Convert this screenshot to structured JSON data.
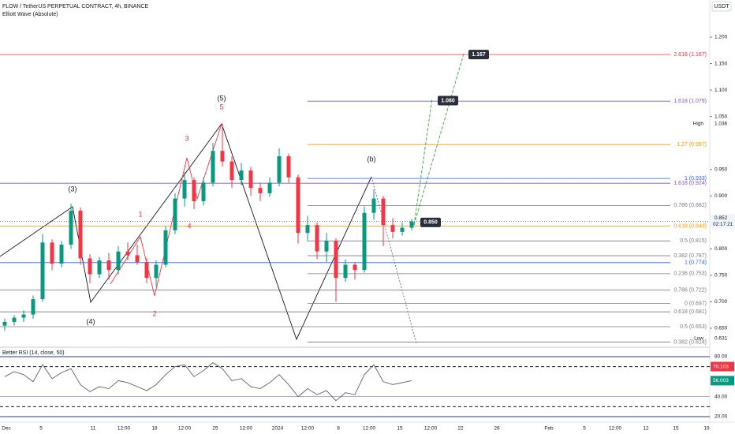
{
  "header": {
    "title": "FLOW / TetherUS PERPETUAL CONTRACT, 4h, BINANCE",
    "indicator": "Elliott Wave (Absolute)",
    "currency": "USDT"
  },
  "price_axis": {
    "ticks": [
      {
        "value": 1.2,
        "label": "1.200"
      },
      {
        "value": 1.15,
        "label": "1.150"
      },
      {
        "value": 1.1,
        "label": "1.100"
      },
      {
        "value": 1.05,
        "label": "1.050"
      },
      {
        "value": 0.95,
        "label": "0.950"
      },
      {
        "value": 0.9,
        "label": "0.900"
      },
      {
        "value": 0.8,
        "label": "0.800"
      },
      {
        "value": 0.75,
        "label": "0.750"
      },
      {
        "value": 0.7,
        "label": "0.700"
      },
      {
        "value": 0.65,
        "label": "0.650"
      }
    ],
    "high": {
      "name": "High",
      "value": 1.036
    },
    "low": {
      "name": "Low",
      "value": 0.631
    },
    "last": {
      "value": 0.852,
      "countdown": "02:17:21"
    }
  },
  "fib_levels": [
    {
      "label": "2.618 (1.167)",
      "price": 1.167,
      "color": "#f23645"
    },
    {
      "label": "1.618 (1.079)",
      "price": 1.079,
      "color": "#7e57c2"
    },
    {
      "label": "1.27 (0.997)",
      "price": 0.997,
      "color": "#ff9800"
    },
    {
      "label": "1 (0.933)",
      "price": 0.933,
      "color": "#2962ff"
    },
    {
      "label": "1.618 (0.924)",
      "price": 0.924,
      "color": "#7e57c2"
    },
    {
      "label": "0.786 (0.882)",
      "price": 0.882,
      "color": "#787b86"
    },
    {
      "label": "0.618 (0.843)",
      "price": 0.843,
      "color": "#ff9800"
    },
    {
      "label": "0.5 (0.815)",
      "price": 0.815,
      "color": "#787b86"
    },
    {
      "label": "0.382 (0.787)",
      "price": 0.787,
      "color": "#787b86"
    },
    {
      "label": "1 (0.774)",
      "price": 0.774,
      "color": "#2962ff"
    },
    {
      "label": "0.236 (0.753)",
      "price": 0.753,
      "color": "#787b86"
    },
    {
      "label": "0.786 (0.722)",
      "price": 0.722,
      "color": "#787b86"
    },
    {
      "label": "0 (0.697)",
      "price": 0.697,
      "color": "#787b86"
    },
    {
      "label": "0.618 (0.681)",
      "price": 0.681,
      "color": "#787b86"
    },
    {
      "label": "0.5 (0.653)",
      "price": 0.653,
      "color": "#787b86"
    },
    {
      "label": "0.382 (0.624)",
      "price": 0.624,
      "color": "#787b86"
    }
  ],
  "wave_labels": [
    {
      "text": "(3)",
      "color": "#131722"
    },
    {
      "text": "(4)",
      "color": "#131722"
    },
    {
      "text": "(5)",
      "color": "#131722"
    },
    {
      "text": "5",
      "color": "#f23645"
    },
    {
      "text": "3",
      "color": "#f23645"
    },
    {
      "text": "1",
      "color": "#f23645"
    },
    {
      "text": "4",
      "color": "#f23645"
    },
    {
      "text": "2",
      "color": "#f23645"
    },
    {
      "text": "(b)",
      "color": "#131722"
    }
  ],
  "targets": [
    {
      "value": 1.167,
      "label": "1.167"
    },
    {
      "value": 1.08,
      "label": "1.080"
    },
    {
      "value": 0.85,
      "label": "0.850"
    }
  ],
  "candles": [
    [
      0.655,
      0.668,
      0.645,
      0.662
    ],
    [
      0.662,
      0.675,
      0.655,
      0.67
    ],
    [
      0.67,
      0.684,
      0.662,
      0.676
    ],
    [
      0.676,
      0.712,
      0.668,
      0.705
    ],
    [
      0.705,
      0.828,
      0.7,
      0.812
    ],
    [
      0.812,
      0.818,
      0.76,
      0.772
    ],
    [
      0.772,
      0.815,
      0.765,
      0.808
    ],
    [
      0.808,
      0.885,
      0.8,
      0.872
    ],
    [
      0.872,
      0.878,
      0.77,
      0.782
    ],
    [
      0.782,
      0.79,
      0.735,
      0.752
    ],
    [
      0.752,
      0.785,
      0.745,
      0.778
    ],
    [
      0.778,
      0.792,
      0.742,
      0.76
    ],
    [
      0.76,
      0.805,
      0.752,
      0.795
    ],
    [
      0.795,
      0.812,
      0.778,
      0.788
    ],
    [
      0.788,
      0.808,
      0.77,
      0.775
    ],
    [
      0.775,
      0.782,
      0.735,
      0.745
    ],
    [
      0.745,
      0.778,
      0.73,
      0.77
    ],
    [
      0.77,
      0.842,
      0.765,
      0.835
    ],
    [
      0.835,
      0.905,
      0.828,
      0.895
    ],
    [
      0.895,
      0.945,
      0.88,
      0.93
    ],
    [
      0.93,
      0.935,
      0.875,
      0.89
    ],
    [
      0.89,
      0.935,
      0.882,
      0.925
    ],
    [
      0.925,
      1.0,
      0.918,
      0.985
    ],
    [
      0.985,
      1.036,
      0.955,
      0.965
    ],
    [
      0.965,
      0.975,
      0.915,
      0.93
    ],
    [
      0.93,
      0.962,
      0.92,
      0.948
    ],
    [
      0.948,
      0.955,
      0.9,
      0.915
    ],
    [
      0.915,
      0.925,
      0.89,
      0.905
    ],
    [
      0.905,
      0.935,
      0.898,
      0.925
    ],
    [
      0.925,
      0.99,
      0.918,
      0.975
    ],
    [
      0.975,
      0.98,
      0.925,
      0.935
    ],
    [
      0.935,
      0.94,
      0.81,
      0.83
    ],
    [
      0.83,
      0.862,
      0.815,
      0.845
    ],
    [
      0.845,
      0.85,
      0.78,
      0.795
    ],
    [
      0.795,
      0.83,
      0.775,
      0.815
    ],
    [
      0.815,
      0.82,
      0.7,
      0.745
    ],
    [
      0.745,
      0.78,
      0.738,
      0.77
    ],
    [
      0.77,
      0.775,
      0.742,
      0.76
    ],
    [
      0.76,
      0.88,
      0.755,
      0.868
    ],
    [
      0.868,
      0.912,
      0.855,
      0.895
    ],
    [
      0.895,
      0.9,
      0.805,
      0.845
    ],
    [
      0.845,
      0.858,
      0.82,
      0.832
    ],
    [
      0.832,
      0.85,
      0.825,
      0.84
    ],
    [
      0.84,
      0.856,
      0.835,
      0.852
    ]
  ],
  "rsi": {
    "title": "Better RSI (14, close, 50)",
    "values": [
      60,
      65,
      62,
      55,
      72,
      58,
      64,
      68,
      52,
      45,
      50,
      48,
      56,
      54,
      50,
      46,
      52,
      62,
      70,
      72,
      60,
      66,
      74,
      68,
      56,
      58,
      50,
      48,
      54,
      62,
      52,
      40,
      48,
      42,
      46,
      36,
      44,
      42,
      62,
      72,
      55,
      52,
      54,
      56
    ],
    "ticks": [
      {
        "value": 80,
        "label": "80.00"
      },
      {
        "value": 40,
        "label": "40.00"
      },
      {
        "value": 20,
        "label": "20.00"
      }
    ],
    "upper": {
      "value": 70.103,
      "label": "70.103"
    },
    "current": {
      "value": 56.003,
      "label": "56.003"
    },
    "levels": [
      70,
      30
    ]
  },
  "x_axis": [
    "Dec",
    "5",
    "11",
    "12:00",
    "18",
    "12:00",
    "25",
    "12:00",
    "2024",
    "12:00",
    "8",
    "12:00",
    "15",
    "12:00",
    "22",
    "26",
    "Feb",
    "5",
    "12:00",
    "12",
    "15",
    "19"
  ]
}
